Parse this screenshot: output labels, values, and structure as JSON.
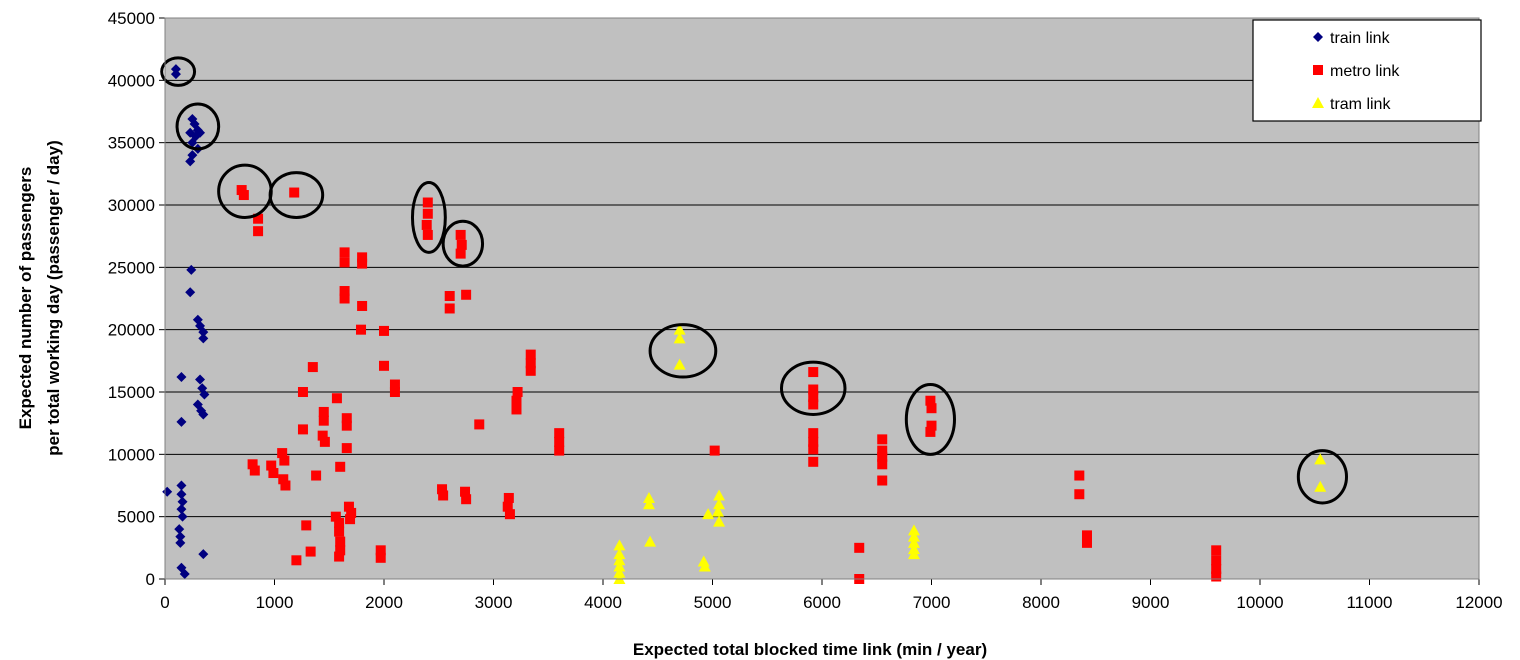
{
  "chart_data": {
    "type": "scatter",
    "title": "",
    "xlabel": "Expected total blocked time link (min / year)",
    "ylabel_lines": [
      "Expected number of passengers",
      "per total working day (passenger / day)"
    ],
    "xlim": [
      0,
      12000
    ],
    "ylim": [
      0,
      45000
    ],
    "x_ticks": [
      0,
      1000,
      2000,
      3000,
      4000,
      5000,
      6000,
      7000,
      8000,
      9000,
      10000,
      11000,
      12000
    ],
    "y_ticks": [
      0,
      5000,
      10000,
      15000,
      20000,
      25000,
      30000,
      35000,
      40000,
      45000
    ],
    "grid": "horizontal",
    "plot_background": "#c0c0c0",
    "legend_position": "top-right",
    "series": [
      {
        "name": "train link",
        "marker": "diamond",
        "color": "#000080",
        "points": [
          [
            100,
            40900
          ],
          [
            100,
            40500
          ],
          [
            250,
            36900
          ],
          [
            270,
            36500
          ],
          [
            300,
            36000
          ],
          [
            230,
            35800
          ],
          [
            280,
            35500
          ],
          [
            250,
            35000
          ],
          [
            320,
            35800
          ],
          [
            300,
            34500
          ],
          [
            250,
            34000
          ],
          [
            230,
            33500
          ],
          [
            240,
            24800
          ],
          [
            230,
            23000
          ],
          [
            300,
            20800
          ],
          [
            320,
            20300
          ],
          [
            350,
            19800
          ],
          [
            350,
            19300
          ],
          [
            320,
            16000
          ],
          [
            340,
            15300
          ],
          [
            360,
            14800
          ],
          [
            300,
            14000
          ],
          [
            330,
            13500
          ],
          [
            350,
            13200
          ],
          [
            150,
            16200
          ],
          [
            150,
            12600
          ],
          [
            20,
            7000
          ],
          [
            150,
            7500
          ],
          [
            150,
            6800
          ],
          [
            160,
            6200
          ],
          [
            150,
            5600
          ],
          [
            160,
            5000
          ],
          [
            130,
            4000
          ],
          [
            140,
            3400
          ],
          [
            140,
            2900
          ],
          [
            350,
            2000
          ],
          [
            150,
            900
          ],
          [
            180,
            400
          ]
        ]
      },
      {
        "name": "metro link",
        "marker": "square",
        "color": "#ff0000",
        "points": [
          [
            700,
            31200
          ],
          [
            720,
            30800
          ],
          [
            1180,
            31000
          ],
          [
            850,
            28900
          ],
          [
            850,
            27900
          ],
          [
            800,
            9200
          ],
          [
            820,
            8700
          ],
          [
            970,
            9100
          ],
          [
            990,
            8500
          ],
          [
            1070,
            10100
          ],
          [
            1090,
            9500
          ],
          [
            1080,
            8000
          ],
          [
            1100,
            7500
          ],
          [
            1200,
            1500
          ],
          [
            1260,
            15000
          ],
          [
            1260,
            12000
          ],
          [
            1290,
            4300
          ],
          [
            1350,
            17000
          ],
          [
            1330,
            2200
          ],
          [
            1380,
            8300
          ],
          [
            1450,
            13400
          ],
          [
            1450,
            12700
          ],
          [
            1440,
            11500
          ],
          [
            1460,
            11000
          ],
          [
            1570,
            14500
          ],
          [
            1560,
            5000
          ],
          [
            1590,
            4500
          ],
          [
            1600,
            9000
          ],
          [
            1590,
            3800
          ],
          [
            1600,
            3000
          ],
          [
            1600,
            2300
          ],
          [
            1590,
            1800
          ],
          [
            1640,
            26200
          ],
          [
            1640,
            25400
          ],
          [
            1640,
            23100
          ],
          [
            1640,
            22500
          ],
          [
            1660,
            12900
          ],
          [
            1660,
            12300
          ],
          [
            1660,
            10500
          ],
          [
            1680,
            5800
          ],
          [
            1700,
            5300
          ],
          [
            1690,
            4800
          ],
          [
            1800,
            25800
          ],
          [
            1800,
            25300
          ],
          [
            1800,
            21900
          ],
          [
            1790,
            20000
          ],
          [
            1970,
            2300
          ],
          [
            1970,
            1700
          ],
          [
            2000,
            19900
          ],
          [
            2000,
            17100
          ],
          [
            2100,
            15600
          ],
          [
            2100,
            15000
          ],
          [
            2400,
            30200
          ],
          [
            2400,
            29300
          ],
          [
            2390,
            28400
          ],
          [
            2400,
            27600
          ],
          [
            2530,
            7200
          ],
          [
            2540,
            6700
          ],
          [
            2600,
            22700
          ],
          [
            2600,
            21700
          ],
          [
            2700,
            27600
          ],
          [
            2710,
            26800
          ],
          [
            2700,
            26100
          ],
          [
            2750,
            22800
          ],
          [
            2740,
            7000
          ],
          [
            2750,
            6400
          ],
          [
            2870,
            12400
          ],
          [
            3140,
            6500
          ],
          [
            3130,
            5800
          ],
          [
            3150,
            5200
          ],
          [
            3220,
            15000
          ],
          [
            3210,
            14300
          ],
          [
            3210,
            13600
          ],
          [
            3340,
            18000
          ],
          [
            3340,
            17300
          ],
          [
            3340,
            16700
          ],
          [
            3600,
            11700
          ],
          [
            3600,
            11000
          ],
          [
            3600,
            10300
          ],
          [
            5020,
            10300
          ],
          [
            5920,
            16600
          ],
          [
            5920,
            15200
          ],
          [
            5920,
            14600
          ],
          [
            5920,
            14000
          ],
          [
            5920,
            11700
          ],
          [
            5920,
            11000
          ],
          [
            5920,
            10400
          ],
          [
            5920,
            9400
          ],
          [
            6340,
            2500
          ],
          [
            6340,
            0
          ],
          [
            6550,
            11200
          ],
          [
            6550,
            10300
          ],
          [
            6550,
            9800
          ],
          [
            6550,
            9200
          ],
          [
            6550,
            7900
          ],
          [
            6990,
            14300
          ],
          [
            7000,
            13700
          ],
          [
            7000,
            12300
          ],
          [
            6990,
            11800
          ],
          [
            8350,
            8300
          ],
          [
            8350,
            6800
          ],
          [
            8420,
            3500
          ],
          [
            8420,
            2900
          ],
          [
            9600,
            2300
          ],
          [
            9600,
            1500
          ],
          [
            9600,
            800
          ],
          [
            9600,
            200
          ]
        ]
      },
      {
        "name": "tram link",
        "marker": "triangle",
        "color": "#ffff00",
        "points": [
          [
            4150,
            2700
          ],
          [
            4150,
            2000
          ],
          [
            4150,
            1500
          ],
          [
            4150,
            1000
          ],
          [
            4150,
            500
          ],
          [
            4150,
            0
          ],
          [
            4420,
            6500
          ],
          [
            4420,
            6000
          ],
          [
            4430,
            3000
          ],
          [
            4700,
            20000
          ],
          [
            4700,
            19300
          ],
          [
            4700,
            17200
          ],
          [
            4920,
            1400
          ],
          [
            4930,
            1000
          ],
          [
            4960,
            5200
          ],
          [
            5060,
            6700
          ],
          [
            5060,
            6000
          ],
          [
            5050,
            5400
          ],
          [
            5060,
            4600
          ],
          [
            6840,
            3900
          ],
          [
            6840,
            3400
          ],
          [
            6840,
            2900
          ],
          [
            6840,
            2400
          ],
          [
            6840,
            2000
          ],
          [
            10550,
            9600
          ],
          [
            10550,
            7400
          ]
        ]
      }
    ],
    "annotations": [
      {
        "type": "ellipse",
        "cx": 120,
        "cy": 40700,
        "rx": 150,
        "ry": 1100
      },
      {
        "type": "ellipse",
        "cx": 300,
        "cy": 36300,
        "rx": 190,
        "ry": 1800
      },
      {
        "type": "ellipse",
        "cx": 730,
        "cy": 31100,
        "rx": 240,
        "ry": 2100
      },
      {
        "type": "ellipse",
        "cx": 1200,
        "cy": 30800,
        "rx": 240,
        "ry": 1800
      },
      {
        "type": "ellipse",
        "cx": 2410,
        "cy": 29000,
        "rx": 150,
        "ry": 2800
      },
      {
        "type": "ellipse",
        "cx": 2720,
        "cy": 26900,
        "rx": 180,
        "ry": 1800
      },
      {
        "type": "ellipse",
        "cx": 4730,
        "cy": 18300,
        "rx": 300,
        "ry": 2100
      },
      {
        "type": "ellipse",
        "cx": 5920,
        "cy": 15300,
        "rx": 290,
        "ry": 2100
      },
      {
        "type": "ellipse",
        "cx": 6990,
        "cy": 12800,
        "rx": 220,
        "ry": 2800
      },
      {
        "type": "ellipse",
        "cx": 10570,
        "cy": 8200,
        "rx": 220,
        "ry": 2100
      }
    ]
  }
}
